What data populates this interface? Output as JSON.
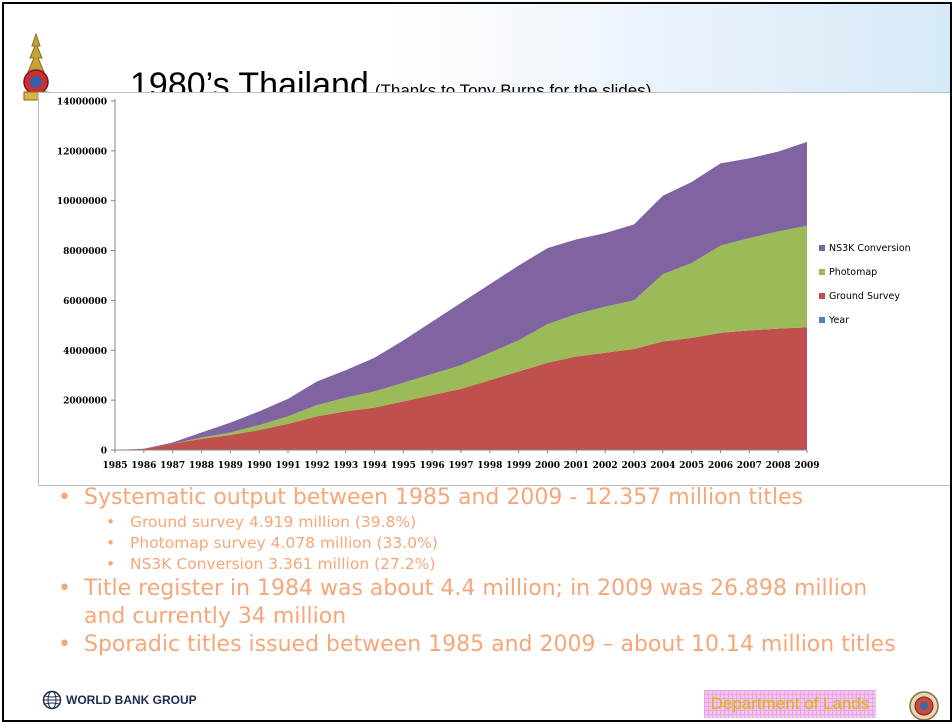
{
  "slide": {
    "title": "1980’s Thailand",
    "subtitle": "(Thanks to Tony Burns for the slides)"
  },
  "chart_data": {
    "type": "area",
    "stacked": true,
    "x": [
      "1985",
      "1986",
      "1987",
      "1988",
      "1989",
      "1990",
      "1991",
      "1992",
      "1993",
      "1994",
      "1995",
      "1996",
      "1997",
      "1998",
      "1999",
      "2000",
      "2001",
      "2002",
      "2003",
      "2004",
      "2005",
      "2006",
      "2007",
      "2008",
      "2009"
    ],
    "ylim": [
      0,
      14000000
    ],
    "yticks": [
      0,
      2000000,
      4000000,
      6000000,
      8000000,
      10000000,
      12000000,
      14000000
    ],
    "grid": false,
    "legend_position": "right",
    "series": [
      {
        "name": "Year",
        "color": "#4f81bd",
        "values": [
          0,
          0,
          0,
          0,
          0,
          0,
          0,
          0,
          0,
          0,
          0,
          0,
          0,
          0,
          0,
          0,
          0,
          0,
          0,
          0,
          0,
          0,
          0,
          0,
          0
        ]
      },
      {
        "name": "Ground Survey",
        "color": "#c0504d",
        "values": [
          0,
          50000,
          250000,
          450000,
          600000,
          800000,
          1050000,
          1350000,
          1550000,
          1700000,
          1950000,
          2200000,
          2450000,
          2800000,
          3150000,
          3500000,
          3750000,
          3900000,
          4050000,
          4350000,
          4500000,
          4700000,
          4800000,
          4870000,
          4919000
        ]
      },
      {
        "name": "Photomap",
        "color": "#9bbb59",
        "values": [
          0,
          0,
          0,
          50000,
          100000,
          200000,
          300000,
          450000,
          550000,
          650000,
          750000,
          850000,
          950000,
          1100000,
          1250000,
          1550000,
          1700000,
          1850000,
          1950000,
          2700000,
          3000000,
          3500000,
          3700000,
          3900000,
          4078000
        ]
      },
      {
        "name": "NS3K Conversion",
        "color": "#8064a2",
        "values": [
          0,
          0,
          50000,
          200000,
          400000,
          550000,
          700000,
          950000,
          1100000,
          1350000,
          1700000,
          2100000,
          2500000,
          2750000,
          3000000,
          3050000,
          3000000,
          2950000,
          3050000,
          3150000,
          3250000,
          3300000,
          3200000,
          3200000,
          3361000
        ]
      }
    ],
    "legend_order": [
      "NS3K Conversion",
      "Photomap",
      "Ground Survey",
      "Year"
    ]
  },
  "bullets": [
    {
      "level": 1,
      "text": "Systematic output between 1985 and 2009 - 12.357 million titles"
    },
    {
      "level": 2,
      "text": "Ground survey 4.919 million (39.8%)"
    },
    {
      "level": 2,
      "text": "Photomap survey 4.078 million (33.0%)"
    },
    {
      "level": 2,
      "text": "NS3K Conversion 3.361 million (27.2%)"
    },
    {
      "level": 1,
      "text": "Title register in 1984 was about 4.4 million; in 2009 was  26.898 million"
    },
    {
      "level": 1,
      "text": "and currently 34 million",
      "continuation": true
    },
    {
      "level": 1,
      "text": "Sporadic titles issued between 1985 and 2009 – about 10.14 million titles"
    }
  ],
  "footer": {
    "logo_label": "WORLD BANK GROUP",
    "department_label": "Department of Lands"
  },
  "icons": {
    "crest": "royal-crest-icon",
    "globe": "world-bank-globe-icon",
    "seal": "department-seal-icon"
  }
}
